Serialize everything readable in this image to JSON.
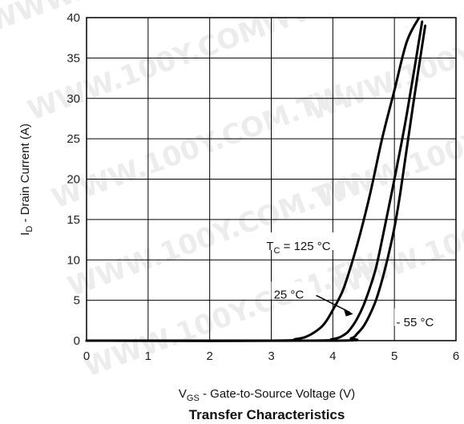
{
  "chart_data": {
    "type": "line",
    "title": "Transfer Characteristics",
    "xlabel": {
      "main": "V",
      "sub": "GS",
      "rest": " - Gate-to-Source Voltage (V)"
    },
    "ylabel": {
      "main": "I",
      "sub": "D",
      "rest": " - Drain Current (A)"
    },
    "xlim": [
      0,
      6
    ],
    "ylim": [
      0,
      40
    ],
    "xticks": [
      "0",
      "1",
      "2",
      "3",
      "4",
      "5",
      "6"
    ],
    "yticks": [
      "0",
      "5",
      "10",
      "15",
      "20",
      "25",
      "30",
      "35",
      "40"
    ],
    "grid": true,
    "series": [
      {
        "name": "TC = 125 °C",
        "x": [
          0,
          3.0,
          3.4,
          3.6,
          3.8,
          3.9,
          4.0,
          4.1,
          4.2,
          4.4,
          4.6,
          4.8,
          5.0,
          5.2,
          5.4
        ],
        "y": [
          0,
          0,
          0.2,
          0.6,
          1.6,
          2.5,
          3.8,
          5.2,
          7.0,
          12.0,
          18.0,
          25.0,
          31.0,
          37.0,
          40
        ]
      },
      {
        "name": "25 °C",
        "x": [
          0,
          3.5,
          4.0,
          4.2,
          4.3,
          4.4,
          4.5,
          4.6,
          4.7,
          4.8,
          5.0,
          5.2,
          5.45
        ],
        "y": [
          0,
          0,
          0.2,
          0.8,
          1.6,
          2.8,
          4.4,
          6.5,
          9.0,
          12.5,
          20.0,
          28.0,
          39.5
        ]
      },
      {
        "name": "- 55 °C",
        "x": [
          0,
          4.0,
          4.3,
          4.4,
          4.5,
          4.6,
          4.7,
          4.8,
          4.9,
          5.0,
          5.1,
          5.3,
          5.5
        ],
        "y": [
          0,
          0,
          0.3,
          0.9,
          1.8,
          3.2,
          5.0,
          7.5,
          10.5,
          14.0,
          18.5,
          29.0,
          39.0
        ]
      }
    ],
    "annotations": {
      "tc": {
        "main": "T",
        "sub": "C",
        "rest": " = 125 °C"
      },
      "t25": "25 °C",
      "tm55": "- 55 °C"
    },
    "colors": {
      "curve": "#000000",
      "grid": "#000000",
      "background": "#ffffff"
    }
  },
  "watermark": "WWW.100Y.COM.TW"
}
